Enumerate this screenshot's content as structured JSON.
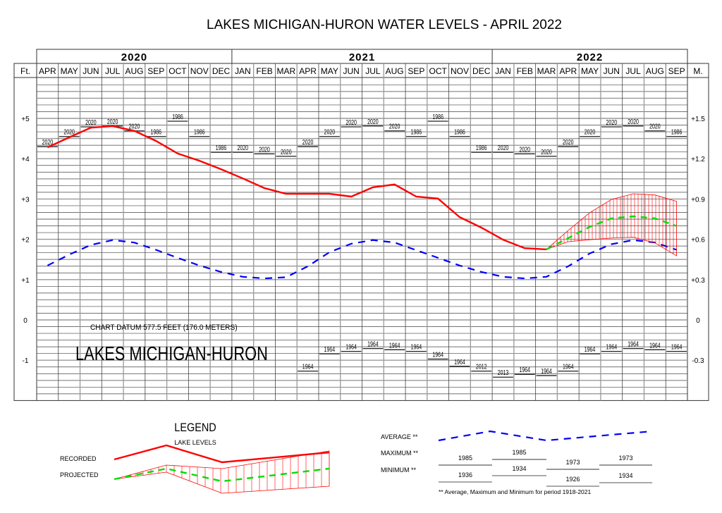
{
  "chart_data": {
    "type": "line",
    "title": "LAKES MICHIGAN-HURON WATER LEVELS - APRIL 2022",
    "years": [
      {
        "label": "2020",
        "months": 9
      },
      {
        "label": "2021",
        "months": 12
      },
      {
        "label": "2022",
        "months": 9
      }
    ],
    "months": [
      "APR",
      "MAY",
      "JUN",
      "JUL",
      "AUG",
      "SEP",
      "OCT",
      "NOV",
      "DEC",
      "JAN",
      "FEB",
      "MAR",
      "APR",
      "MAY",
      "JUN",
      "JUL",
      "AUG",
      "SEP",
      "OCT",
      "NOV",
      "DEC",
      "JAN",
      "FEB",
      "MAR",
      "APR",
      "MAY",
      "JUN",
      "JUL",
      "AUG",
      "SEP"
    ],
    "ylim": [
      -2,
      6
    ],
    "left_axis": {
      "label": "Ft.",
      "ticks": [
        {
          "value": 5,
          "label": "+5"
        },
        {
          "value": 4,
          "label": "+4"
        },
        {
          "value": 3,
          "label": "+3"
        },
        {
          "value": 2,
          "label": "+2"
        },
        {
          "value": 1,
          "label": "+1"
        },
        {
          "value": 0,
          "label": "0"
        },
        {
          "value": -1,
          "label": "-1"
        }
      ]
    },
    "right_axis": {
      "label": "M.",
      "ticks": [
        {
          "value": 5,
          "label": "+1.5"
        },
        {
          "value": 4,
          "label": "+1.2"
        },
        {
          "value": 3,
          "label": "+0.9"
        },
        {
          "value": 2,
          "label": "+0.6"
        },
        {
          "value": 1,
          "label": "+0.3"
        },
        {
          "value": 0,
          "label": "0"
        },
        {
          "value": -1,
          "label": "-0.3"
        }
      ]
    },
    "series": {
      "recorded": {
        "name": "RECORDED",
        "color": "#ff0000",
        "start_index": 0,
        "values": [
          4.28,
          4.53,
          4.77,
          4.81,
          4.69,
          4.44,
          4.13,
          3.95,
          3.74,
          3.51,
          3.27,
          3.13,
          3.13,
          3.13,
          3.06,
          3.29,
          3.36,
          3.06,
          3.01,
          2.55,
          2.29,
          1.99,
          1.78,
          1.75
        ]
      },
      "projected": {
        "name": "PROJECTED",
        "color": "#00dd00",
        "band_color": "#ff0000",
        "start_index": 23,
        "values": [
          1.75,
          2.03,
          2.31,
          2.52,
          2.57,
          2.52,
          2.33
        ],
        "upper": [
          1.75,
          2.22,
          2.66,
          2.99,
          3.13,
          3.1,
          2.94
        ],
        "lower": [
          1.75,
          1.94,
          1.99,
          2.03,
          2.05,
          1.91,
          1.59
        ]
      },
      "average": {
        "name": "AVERAGE",
        "color": "#0000ff",
        "start_index": 0,
        "values": [
          1.35,
          1.62,
          1.86,
          1.98,
          1.92,
          1.74,
          1.54,
          1.35,
          1.19,
          1.07,
          1.03,
          1.06,
          1.33,
          1.68,
          1.89,
          1.98,
          1.92,
          1.73,
          1.54,
          1.35,
          1.19,
          1.07,
          1.03,
          1.07,
          1.33,
          1.65,
          1.88,
          1.98,
          1.92,
          1.74
        ]
      },
      "maximum": {
        "name": "MAXIMUM",
        "values": [
          4.3,
          4.55,
          4.79,
          4.81,
          4.69,
          4.55,
          4.93,
          4.55,
          4.16,
          4.16,
          4.12,
          4.06,
          4.3,
          4.55,
          4.79,
          4.81,
          4.69,
          4.55,
          4.93,
          4.55,
          4.16,
          4.16,
          4.12,
          4.06,
          4.3,
          4.55,
          4.79,
          4.81,
          4.69,
          4.55
        ],
        "years": [
          "2020",
          "2020",
          "2020",
          "2020",
          "2020",
          "1986",
          "1986",
          "1986",
          "1986",
          "2020",
          "2020",
          "2020",
          "2020",
          "2020",
          "2020",
          "2020",
          "2020",
          "1986",
          "1986",
          "1986",
          "1986",
          "2020",
          "2020",
          "2020",
          "2020",
          "2020",
          "2020",
          "2020",
          "2020",
          "1986"
        ]
      },
      "minimum": {
        "name": "MINIMUM",
        "values": [
          null,
          null,
          null,
          null,
          null,
          null,
          null,
          null,
          null,
          null,
          null,
          null,
          -1.27,
          -0.84,
          -0.78,
          -0.71,
          -0.74,
          -0.78,
          -0.97,
          -1.15,
          -1.27,
          -1.42,
          -1.35,
          -1.38,
          -1.27,
          -0.84,
          -0.78,
          -0.71,
          -0.74,
          -0.78
        ],
        "years": [
          null,
          null,
          null,
          null,
          null,
          null,
          null,
          null,
          null,
          null,
          null,
          null,
          "1964",
          "1964",
          "1964",
          "1964",
          "1964",
          "1964",
          "1964",
          "1964",
          "2012",
          "2013",
          "1964",
          "1964",
          "1964",
          "1964",
          "1964",
          "1964",
          "1964",
          "1964"
        ]
      }
    },
    "annotations": {
      "chart_datum": "CHART DATUM  577.5 FEET (176.0 METERS)",
      "lake_name": "LAKES MICHIGAN-HURON"
    }
  },
  "legend": {
    "title": "LEGEND",
    "subtitle": "LAKE LEVELS",
    "recorded_label": "RECORDED",
    "projected_label": "PROJECTED",
    "average_label": "AVERAGE **",
    "maximum_label": "MAXIMUM **",
    "minimum_label": "MINIMUM **",
    "max_examples": [
      "1985",
      "1985",
      "1973",
      "1973"
    ],
    "min_examples": [
      "1936",
      "1934",
      "1926",
      "1934"
    ],
    "footnote": "** Average, Maximum and Minimum for period 1918-2021",
    "colors": {
      "recorded": "#ff0000",
      "projected": "#00dd00",
      "average": "#0000ff",
      "band": "#ff0000"
    }
  }
}
